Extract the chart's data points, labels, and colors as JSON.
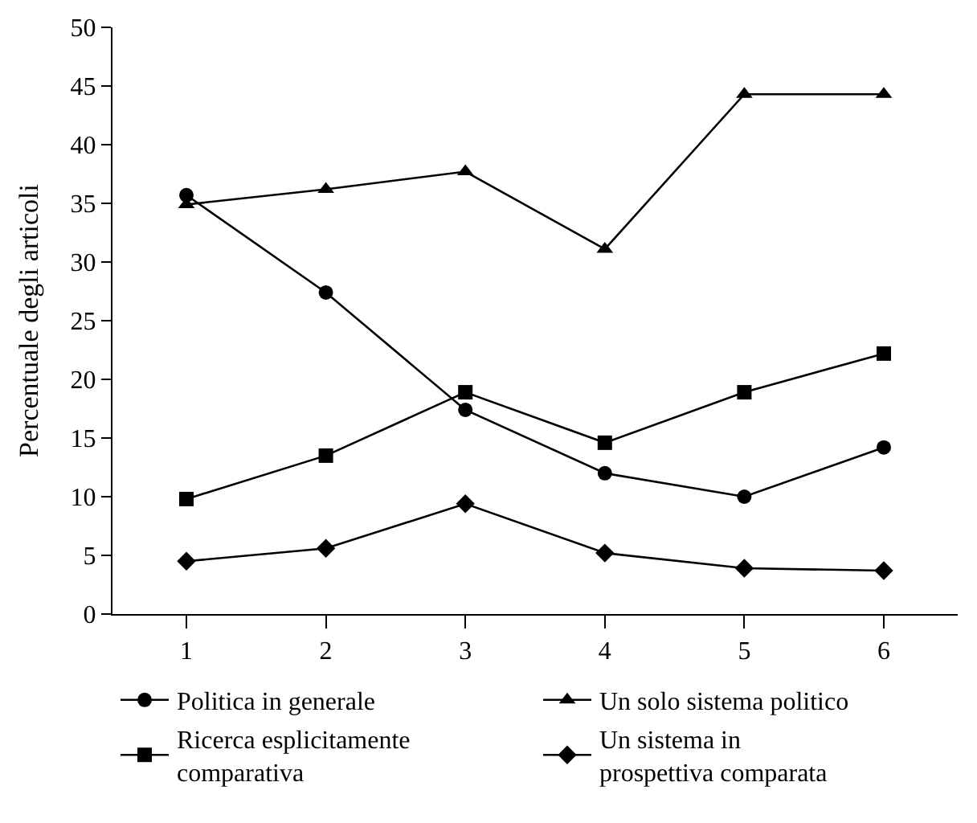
{
  "chart_data": {
    "type": "line",
    "ylabel": "Percentuale degli articoli",
    "x": [
      1,
      2,
      3,
      4,
      5,
      6
    ],
    "xlim": [
      0.47,
      6.53
    ],
    "xticks": [
      1,
      2,
      3,
      4,
      5,
      6
    ],
    "ylim": [
      0,
      50
    ],
    "yticks": [
      0,
      5,
      10,
      15,
      20,
      25,
      30,
      35,
      40,
      45,
      50
    ],
    "grid": false,
    "legend": "bottom",
    "series": [
      {
        "name": "Politica in generale",
        "color": "#000000",
        "marker": "circle",
        "values": [
          35.7,
          27.4,
          17.4,
          12.0,
          10.0,
          14.2
        ]
      },
      {
        "name": "Un solo sistema politico",
        "color": "#000000",
        "marker": "triangle",
        "values": [
          34.9,
          36.2,
          37.7,
          31.1,
          44.3,
          44.3
        ]
      },
      {
        "name": "Ricerca esplicitamente comparativa",
        "color": "#000000",
        "marker": "square",
        "values": [
          9.8,
          13.5,
          18.9,
          14.6,
          18.9,
          22.2
        ]
      },
      {
        "name": "Un sistema in prospettiva comparata",
        "color": "#000000",
        "marker": "diamond",
        "values": [
          4.5,
          5.6,
          9.4,
          5.2,
          3.9,
          3.7
        ]
      }
    ]
  }
}
